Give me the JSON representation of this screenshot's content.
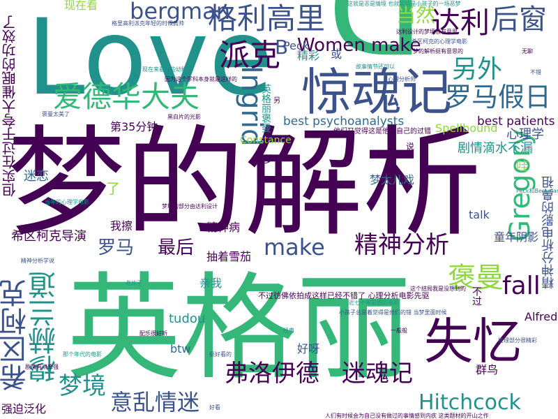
{
  "palette": {
    "dark_purple": "#440154",
    "indigo": "#3b528b",
    "teal": "#21918c",
    "green": "#35b779",
    "lime": "#90d743",
    "yellow": "#fde725",
    "blue": "#31688e",
    "violet": "#482878"
  },
  "words": {
    "meng_de_jie_xi": "梦的解析",
    "ying_ge_li": "英格丽",
    "love": "Love",
    "d": "D",
    "jing_hun_ji": "惊魂记",
    "shi_yi": "失忆",
    "ge_li_gao_li": "格利高里",
    "da_li": "达利",
    "hou_chuang": "后窗",
    "ai_de_hua_da_fu": "爱德华大夫",
    "luo_ma_jia_ri": "罗马假日",
    "pai_ke": "派克",
    "ling_wai": "另外",
    "dang_ran": "当然",
    "bergman": "bergman",
    "ingrid": "Ingrid",
    "gregory": "Gregory",
    "women_make": "Women make",
    "b": "B",
    "peck": "Peck",
    "huo": "或",
    "jing_cai": "精彩",
    "best_psychoanalysts": "best psychoanalysts",
    "best_patients": "best patients",
    "spellbound": "Spellbound",
    "xin_li_xue": "心理学",
    "di_35_fen_zhong": "第35分钟",
    "constance": "Constance",
    "ju_qing_di_shui_bu_lou": "剧情滴水不漏",
    "meng_tai_er_xi": "梦太儿戏",
    "mi_lian": "迷恋",
    "le": "了",
    "shi_meng": "释梦",
    "xi_qu_ke_dao_yan": "希区柯克导演",
    "wo_ca": "我擦",
    "luo_ma": "罗马",
    "zui_hou": "最后",
    "jing_shen_bing": "精神病",
    "chou_zhe_xue_jia": "抽着雪茄",
    "make": "make",
    "jing_shen_fen_xi": "精神分析",
    "tong_nian_yin_ying": "童年阴影",
    "talk": "talk",
    "fall": "fall",
    "bao_man": "褒曼",
    "alfred": "Alfred",
    "xi_qu_ke_ke": "希区柯克",
    "mu_he_lan_dao": "穆赫兰道",
    "qin_wo": "亲我",
    "tudou": "tudou",
    "btw": "btw",
    "hao_ya": "好呀",
    "qun_niao": "群鸟",
    "meng_jing": "梦境",
    "yi_luan_qing_mi": "意乱情迷",
    "fu_luo_yi_de": "弗洛伊德",
    "mi_hun_ji": "迷魂记",
    "hitchcock": "Hitchcock",
    "qiang_po_fan_hua": "强迫泛化",
    "xian_zai_kan": "现在看",
    "dan_shi_zai_guo_yu_kua_da_cui_mian_de_gong_xiao_le": "但实在过于夸大催眠的功效了",
    "jing_shen_fen_xi_dian_ying_de_bi_zu": "精神分析电影的鼻祖",
    "ying_ge_li_bao_man": "英格丽褒曼",
    "bu_guo_fang_fo_yi_pai_cheng_zhe_yang_ba_yi_jing_bu_cuo_le_xin_li_fen_xi_dian_ying_xian_qu": "不过彷佛依拍成这样已经不错了 心理分析电影先驱",
    "ta_men_you_ke_neng_jiu_shi_ta_men_zi_ji_de_guo_cuo": "他们又觉得这是他们自己的过错",
    "wa": "哇",
    "bu_guo": "不过",
    "shuo": "说",
    "ling": "另",
    "small_1": "这就是恶是情境 也就实只是小孩子的一场恶梦",
    "small_2": "达利设计的梦境很有意思",
    "small_3": "希区柯克的心理学电影",
    "small_4": "梦的解析挺有意思的",
    "small_5": "故事情节还可以",
    "small_6": "心理分析师",
    "small_7": "人们有时候会为自己没有做过的事情感到内疚 这类题材的开山之作",
    "small_8": "小孩子总是着觉得是他们的错 当梦里面时候",
    "small_9": "近七十年前拍的电影",
    "small_10": "这个结局我是没想到的",
    "small_11": "格里高利派克年轻的时候真帅",
    "small_12": "现在来看有些幼稚",
    "small_13": "因为这个学科本身就是这样的",
    "small_14": "褒曼太美了",
    "small_15": "黑白片的光影",
    "small_16": "当年的心理学电影",
    "small_17": "梦境的部分由达利设计",
    "small_18": "精神分析学说",
    "small_19": "老片子",
    "small_20": "配乐很好听",
    "small_21": "挺好看的",
    "small_22": "经典",
    "small_23": "一般般",
    "small_24": "推理部分很精彩",
    "small_25": "Peck和Bergman",
    "small_26": "无聊",
    "small_27": "不错",
    "small_28": "那个年代的电影",
    "small_29": "剧情有点牵强",
    "small_30": "好看"
  }
}
